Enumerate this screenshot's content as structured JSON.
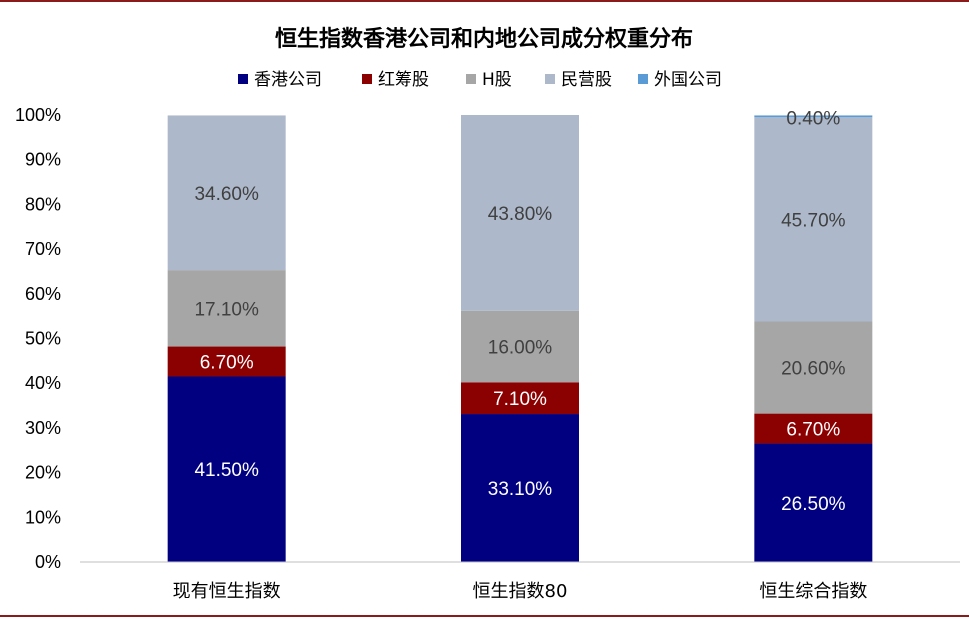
{
  "chart_data": {
    "type": "bar",
    "stacked": true,
    "title": "恒生指数香港公司和内地公司成分权重分布",
    "categories": [
      "现有恒生指数",
      "恒生指数80",
      "恒生综合指数"
    ],
    "series": [
      {
        "name": "香港公司",
        "color": "#000080",
        "values": [
          41.5,
          33.1,
          26.5
        ],
        "labels": [
          "41.50%",
          "33.10%",
          "26.50%"
        ],
        "label_color": "#ffffff"
      },
      {
        "name": "红筹股",
        "color": "#8b0000",
        "values": [
          6.7,
          7.1,
          6.7
        ],
        "labels": [
          "6.70%",
          "7.10%",
          "6.70%"
        ],
        "label_color": "#ffffff"
      },
      {
        "name": "H股",
        "color": "#a6a6a6",
        "values": [
          17.1,
          16.0,
          20.6
        ],
        "labels": [
          "17.10%",
          "16.00%",
          "20.60%"
        ],
        "label_color": "#404040"
      },
      {
        "name": "民营股",
        "color": "#adb9ca",
        "values": [
          34.6,
          43.8,
          45.7
        ],
        "labels": [
          "34.60%",
          "43.80%",
          "45.70%"
        ],
        "label_color": "#404040"
      },
      {
        "name": "外国公司",
        "color": "#5b9bd5",
        "values": [
          0,
          0,
          0.4
        ],
        "labels": [
          "",
          "",
          "0.40%"
        ],
        "label_color": "#404040"
      }
    ],
    "ylim": [
      0,
      100
    ],
    "yticks": [
      "0%",
      "10%",
      "20%",
      "30%",
      "40%",
      "50%",
      "60%",
      "70%",
      "80%",
      "90%",
      "100%"
    ],
    "xlabel": "",
    "ylabel": "",
    "grid": false,
    "legend_position": "top"
  }
}
